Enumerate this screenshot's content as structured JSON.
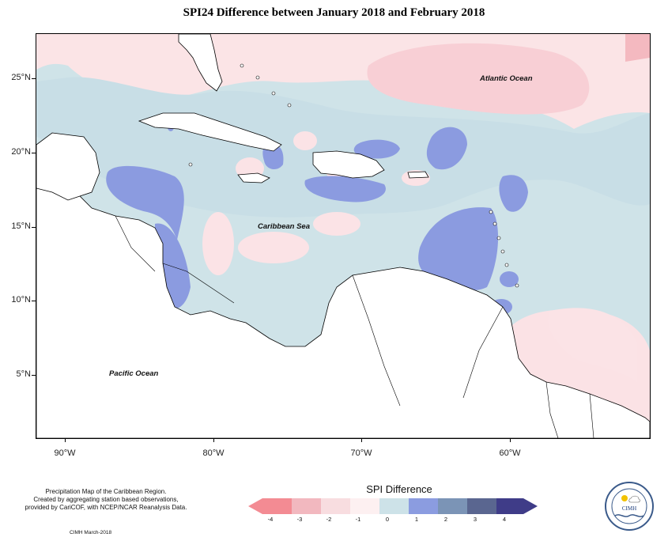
{
  "title": "SPI24 Difference between January 2018 and February 2018",
  "map": {
    "latitude_labels": [
      "25°N",
      "20°N",
      "15°N",
      "10°N",
      "5°N"
    ],
    "longitude_labels": [
      "90°W",
      "80°W",
      "70°W",
      "60°W"
    ],
    "ocean_labels": {
      "atlantic": "Atlantic Ocean",
      "caribbean": "Caribbean Sea",
      "pacific": "Pacific Ocean"
    }
  },
  "legend": {
    "title": "SPI Difference",
    "ticks": [
      "-4",
      "-3",
      "-2",
      "-1",
      "0",
      "1",
      "2",
      "3",
      "4"
    ],
    "colors": [
      "#f38b93",
      "#f2b8bf",
      "#f8dde0",
      "#fdf0f1",
      "#cde2e8",
      "#8b9ce0",
      "#7b94b6",
      "#5a6690",
      "#3f3c88"
    ]
  },
  "footer": {
    "note_line1": "Precipitation Map of the Caribbean Region.",
    "note_line2": "Created by aggregating station based observations,",
    "note_line3": "provided by CariCOF, with NCEP/NCAR Reanalysis Data.",
    "credit": "CIMH March-2018",
    "logo_text": "CIMH"
  }
}
